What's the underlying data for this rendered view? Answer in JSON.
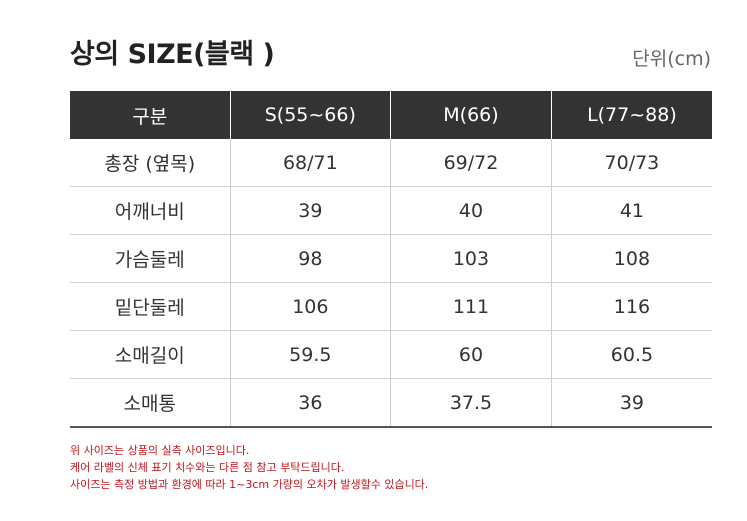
{
  "title": "상의 SIZE(블랙 )",
  "unit": "단위(cm)",
  "table": {
    "headers": [
      "구분",
      "S(55~66)",
      "M(66)",
      "L(77~88)"
    ],
    "rows": [
      {
        "label": "총장 (옆목)",
        "values": [
          "68/71",
          "69/72",
          "70/73"
        ]
      },
      {
        "label": "어깨너비",
        "values": [
          "39",
          "40",
          "41"
        ]
      },
      {
        "label": "가슴둘레",
        "values": [
          "98",
          "103",
          "108"
        ]
      },
      {
        "label": "밑단둘레",
        "values": [
          "106",
          "111",
          "116"
        ]
      },
      {
        "label": "소매길이",
        "values": [
          "59.5",
          "60",
          "60.5"
        ]
      },
      {
        "label": "소매통",
        "values": [
          "36",
          "37.5",
          "39"
        ]
      }
    ]
  },
  "notes": [
    "위 사이즈는 상품의 실측 사이즈입니다.",
    "케어 라벨의 신체 표기 치수와는 다른 점 참고 부탁드립니다.",
    "사이즈는 측정 방법과 환경에 따라 1~3cm 가량의 오차가 발생할수 있습니다."
  ],
  "colors": {
    "header_bg": "#333333",
    "note_text": "#c0161e"
  }
}
